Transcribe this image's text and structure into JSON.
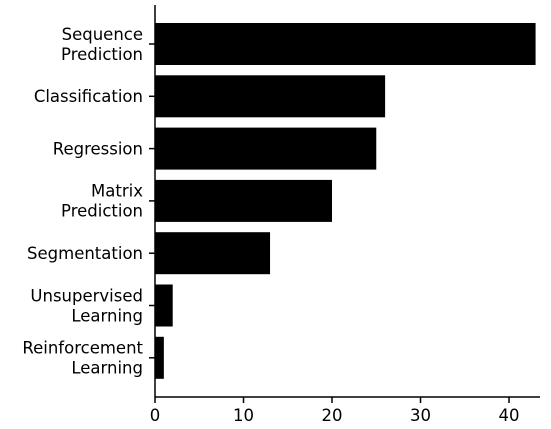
{
  "chart_data": {
    "type": "bar",
    "orientation": "horizontal",
    "categories": [
      "Sequence\nPrediction",
      "Classification",
      "Regression",
      "Matrix\nPrediction",
      "Segmentation",
      "Unsupervised\nLearning",
      "Reinforcement\nLearning"
    ],
    "values": [
      43,
      26,
      25,
      20,
      13,
      2,
      1
    ],
    "xlim": [
      0,
      43.5
    ],
    "x_ticks": [
      0,
      10,
      20,
      30,
      40
    ],
    "title": "",
    "xlabel": "",
    "ylabel": "",
    "grid": false,
    "legend": "none",
    "bar_color": "#000000"
  }
}
